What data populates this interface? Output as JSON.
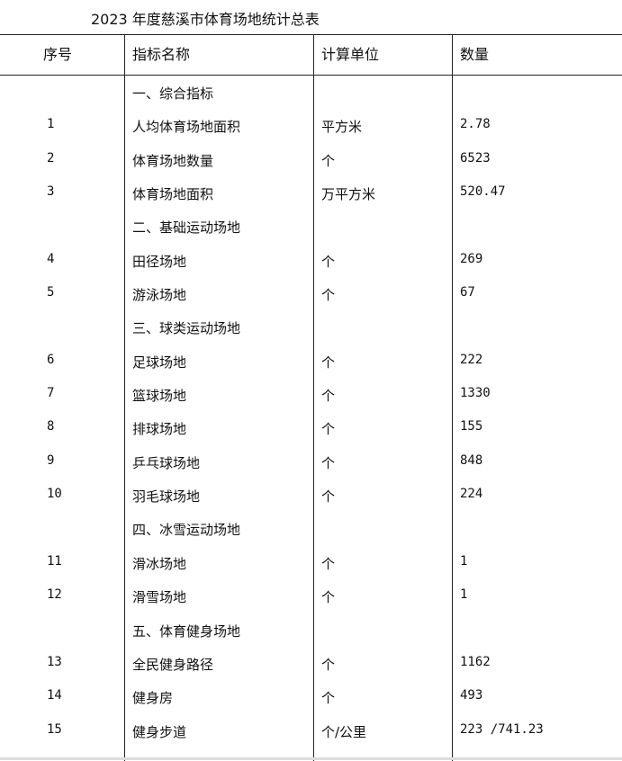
{
  "title": "2023 年度慈溪市体育场地统计总表",
  "headers": [
    "序号",
    "指标名称",
    "计算单位",
    "数量"
  ],
  "rows": [
    {
      "no": "",
      "name": "一、综合指标",
      "unit": "",
      "qty": ""
    },
    {
      "no": "1",
      "name": "人均体育场地面积",
      "unit": "平方米",
      "qty": "2.78"
    },
    {
      "no": "2",
      "name": "体育场地数量",
      "unit": "个",
      "qty": "6523"
    },
    {
      "no": "3",
      "name": "体育场地面积",
      "unit": "万平方米",
      "qty": "520.47"
    },
    {
      "no": "",
      "name": "二、基础运动场地",
      "unit": "",
      "qty": ""
    },
    {
      "no": "4",
      "name": "田径场地",
      "unit": "个",
      "qty": "269"
    },
    {
      "no": "5",
      "name": "游泳场地",
      "unit": "个",
      "qty": "67"
    },
    {
      "no": "",
      "name": "三、球类运动场地",
      "unit": "",
      "qty": ""
    },
    {
      "no": "6",
      "name": "足球场地",
      "unit": "个",
      "qty": "222"
    },
    {
      "no": "7",
      "name": "篮球场地",
      "unit": "个",
      "qty": "1330"
    },
    {
      "no": "8",
      "name": "排球场地",
      "unit": "个",
      "qty": "155"
    },
    {
      "no": "9",
      "name": "乒乓球场地",
      "unit": "个",
      "qty": "848"
    },
    {
      "no": "10",
      "name": "羽毛球场地",
      "unit": "个",
      "qty": "224"
    },
    {
      "no": "",
      "name": "四、冰雪运动场地",
      "unit": "",
      "qty": ""
    },
    {
      "no": "11",
      "name": "滑冰场地",
      "unit": "个",
      "qty": "1"
    },
    {
      "no": "12",
      "name": "滑雪场地",
      "unit": "个",
      "qty": "1"
    },
    {
      "no": "",
      "name": "五、体育健身场地",
      "unit": "",
      "qty": ""
    },
    {
      "no": "13",
      "name": "全民健身路径",
      "unit": "个",
      "qty": "1162"
    },
    {
      "no": "14",
      "name": "健身房",
      "unit": "个",
      "qty": "493"
    },
    {
      "no": "15",
      "name": "健身步道",
      "unit": "个/公里",
      "qty": "223 /741.23"
    }
  ]
}
